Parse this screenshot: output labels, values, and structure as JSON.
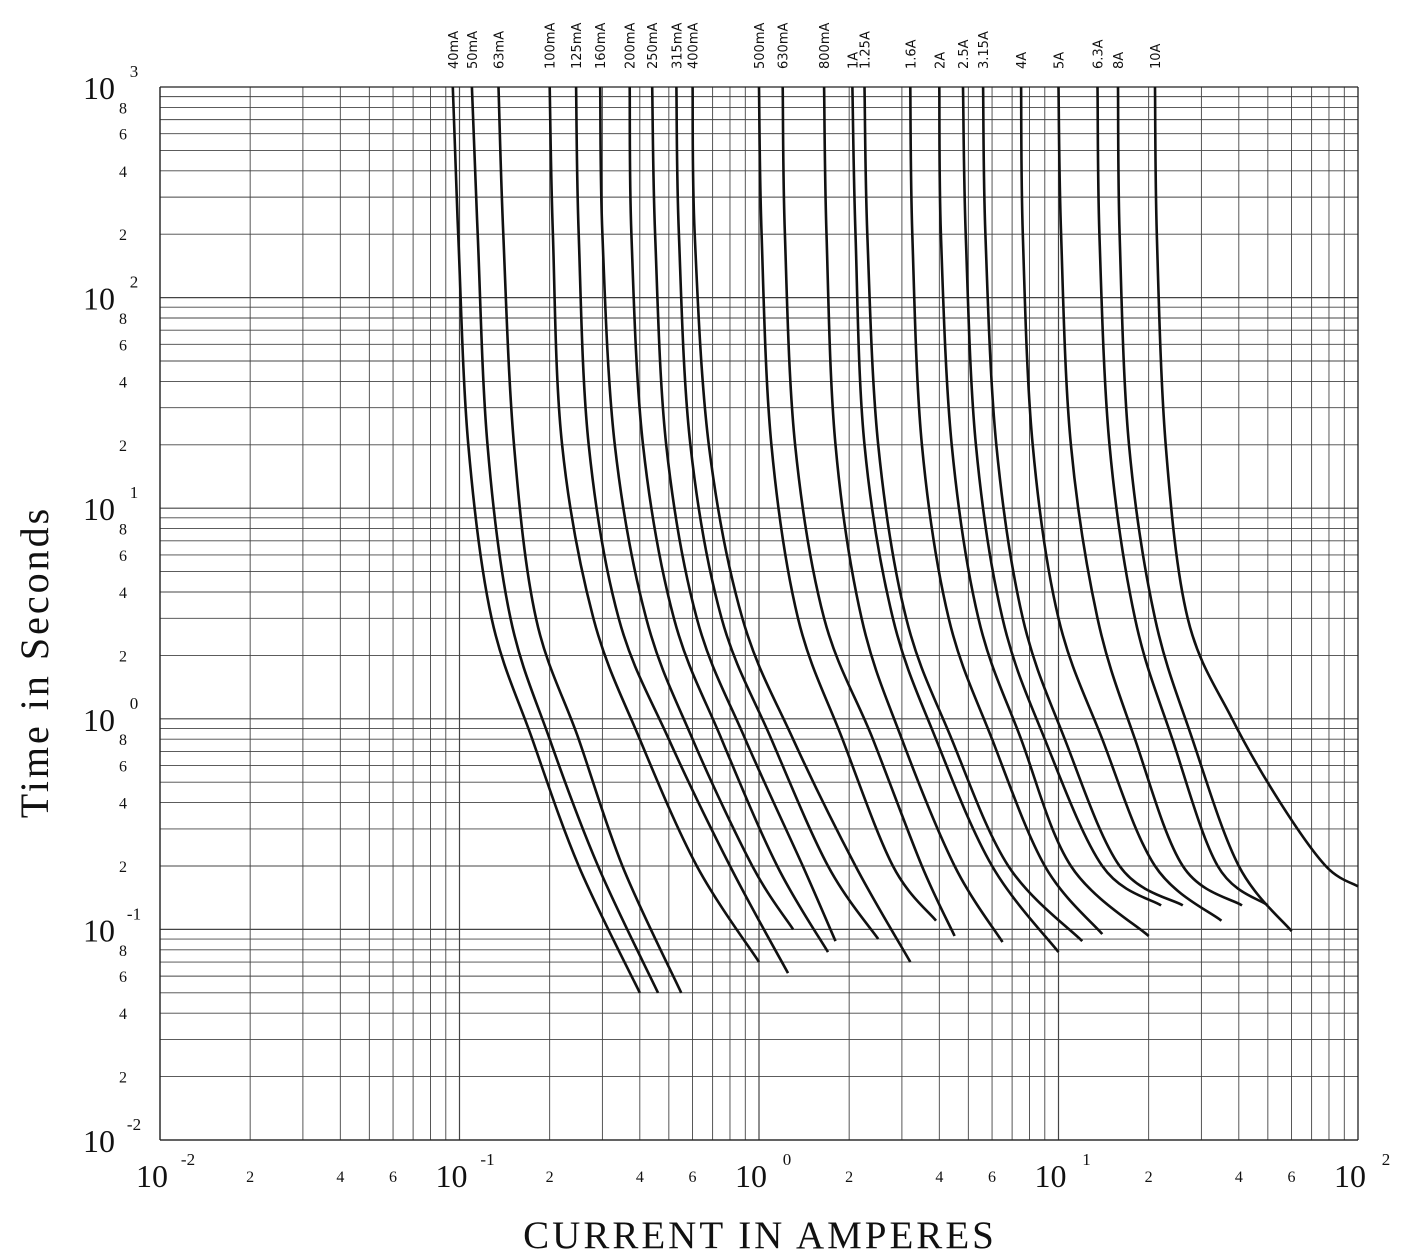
{
  "chart_data": {
    "type": "line",
    "title": "",
    "xlabel": "CURRENT IN AMPERES",
    "ylabel": "Time in Seconds",
    "x_scale": "log",
    "y_scale": "log",
    "xlim": [
      0.01,
      100
    ],
    "ylim": [
      0.01,
      1000
    ],
    "grid": true,
    "x_decade_labels": [
      {
        "value": 0.01,
        "base": "10",
        "exp": "-2"
      },
      {
        "value": 0.1,
        "base": "10",
        "exp": "-1"
      },
      {
        "value": 1,
        "base": "10",
        "exp": "0"
      },
      {
        "value": 10,
        "base": "10",
        "exp": "1"
      },
      {
        "value": 100,
        "base": "10",
        "exp": "2"
      }
    ],
    "y_decade_labels": [
      {
        "value": 0.01,
        "base": "10",
        "exp": "-2"
      },
      {
        "value": 0.1,
        "base": "10",
        "exp": "-1"
      },
      {
        "value": 1,
        "base": "10",
        "exp": "0"
      },
      {
        "value": 10,
        "base": "10",
        "exp": "1"
      },
      {
        "value": 100,
        "base": "10",
        "exp": "2"
      },
      {
        "value": 1000,
        "base": "10",
        "exp": "3"
      }
    ],
    "minor_tick_labels": [
      "2",
      "4",
      "6",
      "8"
    ],
    "series": [
      {
        "name": "40mA",
        "points": [
          [
            0.095,
            1000
          ],
          [
            0.099,
            200
          ],
          [
            0.107,
            20
          ],
          [
            0.128,
            3
          ],
          [
            0.175,
            0.8
          ],
          [
            0.25,
            0.2
          ],
          [
            0.4,
            0.05
          ]
        ]
      },
      {
        "name": "50mA",
        "points": [
          [
            0.11,
            1000
          ],
          [
            0.115,
            200
          ],
          [
            0.124,
            20
          ],
          [
            0.148,
            3
          ],
          [
            0.2,
            0.8
          ],
          [
            0.29,
            0.2
          ],
          [
            0.46,
            0.05
          ]
        ]
      },
      {
        "name": "63mA",
        "points": [
          [
            0.135,
            1000
          ],
          [
            0.14,
            200
          ],
          [
            0.152,
            20
          ],
          [
            0.18,
            3
          ],
          [
            0.25,
            0.8
          ],
          [
            0.35,
            0.2
          ],
          [
            0.55,
            0.05
          ]
        ]
      },
      {
        "name": "100mA",
        "points": [
          [
            0.2,
            1000
          ],
          [
            0.205,
            200
          ],
          [
            0.22,
            20
          ],
          [
            0.28,
            3
          ],
          [
            0.4,
            0.8
          ],
          [
            0.62,
            0.2
          ],
          [
            1.0,
            0.07
          ]
        ]
      },
      {
        "name": "125mA",
        "points": [
          [
            0.245,
            1000
          ],
          [
            0.25,
            200
          ],
          [
            0.27,
            20
          ],
          [
            0.34,
            3
          ],
          [
            0.5,
            0.8
          ],
          [
            0.8,
            0.2
          ],
          [
            1.25,
            0.062
          ]
        ]
      },
      {
        "name": "160mA",
        "points": [
          [
            0.295,
            1000
          ],
          [
            0.3,
            200
          ],
          [
            0.33,
            20
          ],
          [
            0.42,
            3
          ],
          [
            0.6,
            0.8
          ],
          [
            0.95,
            0.2
          ],
          [
            1.3,
            0.1
          ]
        ]
      },
      {
        "name": "200mA",
        "points": [
          [
            0.37,
            1000
          ],
          [
            0.375,
            200
          ],
          [
            0.41,
            20
          ],
          [
            0.52,
            3
          ],
          [
            0.75,
            0.8
          ],
          [
            1.15,
            0.2
          ],
          [
            1.7,
            0.078
          ]
        ]
      },
      {
        "name": "250mA",
        "points": [
          [
            0.44,
            1000
          ],
          [
            0.45,
            200
          ],
          [
            0.49,
            20
          ],
          [
            0.62,
            3
          ],
          [
            0.9,
            0.8
          ],
          [
            1.4,
            0.2
          ],
          [
            1.8,
            0.088
          ]
        ]
      },
      {
        "name": "315mA",
        "points": [
          [
            0.53,
            1000
          ],
          [
            0.54,
            200
          ],
          [
            0.59,
            20
          ],
          [
            0.75,
            3
          ],
          [
            1.1,
            0.8
          ],
          [
            1.7,
            0.2
          ],
          [
            2.5,
            0.09
          ]
        ]
      },
      {
        "name": "400mA",
        "points": [
          [
            0.6,
            1000
          ],
          [
            0.61,
            200
          ],
          [
            0.68,
            20
          ],
          [
            0.88,
            3
          ],
          [
            1.3,
            0.8
          ],
          [
            2.1,
            0.2
          ],
          [
            3.2,
            0.07
          ]
        ]
      },
      {
        "name": "500mA",
        "points": [
          [
            1.0,
            1000
          ],
          [
            1.02,
            200
          ],
          [
            1.1,
            20
          ],
          [
            1.35,
            3
          ],
          [
            1.9,
            0.8
          ],
          [
            2.8,
            0.2
          ],
          [
            3.9,
            0.11
          ]
        ]
      },
      {
        "name": "630mA",
        "points": [
          [
            1.2,
            1000
          ],
          [
            1.22,
            200
          ],
          [
            1.32,
            20
          ],
          [
            1.65,
            3
          ],
          [
            2.4,
            0.8
          ],
          [
            3.5,
            0.2
          ],
          [
            4.5,
            0.093
          ]
        ]
      },
      {
        "name": "800mA",
        "points": [
          [
            1.65,
            1000
          ],
          [
            1.68,
            200
          ],
          [
            1.8,
            20
          ],
          [
            2.2,
            3
          ],
          [
            3.0,
            0.8
          ],
          [
            4.5,
            0.2
          ],
          [
            6.5,
            0.087
          ]
        ]
      },
      {
        "name": "1A",
        "points": [
          [
            2.05,
            1000
          ],
          [
            2.1,
            200
          ],
          [
            2.25,
            20
          ],
          [
            2.8,
            3
          ],
          [
            3.9,
            0.8
          ],
          [
            6.0,
            0.2
          ],
          [
            10.0,
            0.078
          ]
        ]
      },
      {
        "name": "1.25A",
        "points": [
          [
            2.25,
            1000
          ],
          [
            2.3,
            200
          ],
          [
            2.5,
            20
          ],
          [
            3.1,
            3
          ],
          [
            4.4,
            0.8
          ],
          [
            6.8,
            0.2
          ],
          [
            12.0,
            0.088
          ]
        ]
      },
      {
        "name": "1.6A",
        "points": [
          [
            3.2,
            1000
          ],
          [
            3.25,
            200
          ],
          [
            3.5,
            20
          ],
          [
            4.3,
            3
          ],
          [
            6.0,
            0.8
          ],
          [
            9.0,
            0.2
          ],
          [
            14.0,
            0.095
          ]
        ]
      },
      {
        "name": "2A",
        "points": [
          [
            4.0,
            1000
          ],
          [
            4.05,
            200
          ],
          [
            4.4,
            20
          ],
          [
            5.4,
            3
          ],
          [
            7.5,
            0.8
          ],
          [
            11.0,
            0.2
          ],
          [
            20.0,
            0.093
          ]
        ]
      },
      {
        "name": "2.5A",
        "points": [
          [
            4.8,
            1000
          ],
          [
            4.9,
            200
          ],
          [
            5.3,
            20
          ],
          [
            6.5,
            3
          ],
          [
            9.0,
            0.8
          ],
          [
            14.0,
            0.2
          ],
          [
            22.0,
            0.13
          ]
        ]
      },
      {
        "name": "3.15A",
        "points": [
          [
            5.6,
            1000
          ],
          [
            5.7,
            200
          ],
          [
            6.2,
            20
          ],
          [
            7.6,
            3
          ],
          [
            10.5,
            0.8
          ],
          [
            16.0,
            0.2
          ],
          [
            26.0,
            0.13
          ]
        ]
      },
      {
        "name": "4A",
        "points": [
          [
            7.5,
            1000
          ],
          [
            7.6,
            200
          ],
          [
            8.2,
            20
          ],
          [
            10.0,
            3
          ],
          [
            14.0,
            0.8
          ],
          [
            21.0,
            0.2
          ],
          [
            35.0,
            0.11
          ]
        ]
      },
      {
        "name": "5A",
        "points": [
          [
            10.0,
            1000
          ],
          [
            10.2,
            200
          ],
          [
            11.0,
            20
          ],
          [
            13.5,
            3
          ],
          [
            18.0,
            0.8
          ],
          [
            26.0,
            0.2
          ],
          [
            41.0,
            0.13
          ]
        ]
      },
      {
        "name": "6.3A",
        "points": [
          [
            13.5,
            1000
          ],
          [
            13.7,
            200
          ],
          [
            14.8,
            20
          ],
          [
            18.0,
            3
          ],
          [
            24.0,
            0.8
          ],
          [
            34.0,
            0.2
          ],
          [
            50.0,
            0.13
          ]
        ]
      },
      {
        "name": "8A",
        "points": [
          [
            15.8,
            1000
          ],
          [
            16.0,
            200
          ],
          [
            17.2,
            20
          ],
          [
            21.0,
            3
          ],
          [
            28.0,
            0.8
          ],
          [
            40.0,
            0.2
          ],
          [
            60.0,
            0.098
          ]
        ]
      },
      {
        "name": "10A",
        "points": [
          [
            21.0,
            1000
          ],
          [
            21.3,
            200
          ],
          [
            22.8,
            20
          ],
          [
            27.0,
            3
          ],
          [
            38.0,
            1.0
          ],
          [
            55.0,
            0.4
          ],
          [
            78.0,
            0.2
          ],
          [
            100.0,
            0.16
          ]
        ]
      }
    ]
  }
}
